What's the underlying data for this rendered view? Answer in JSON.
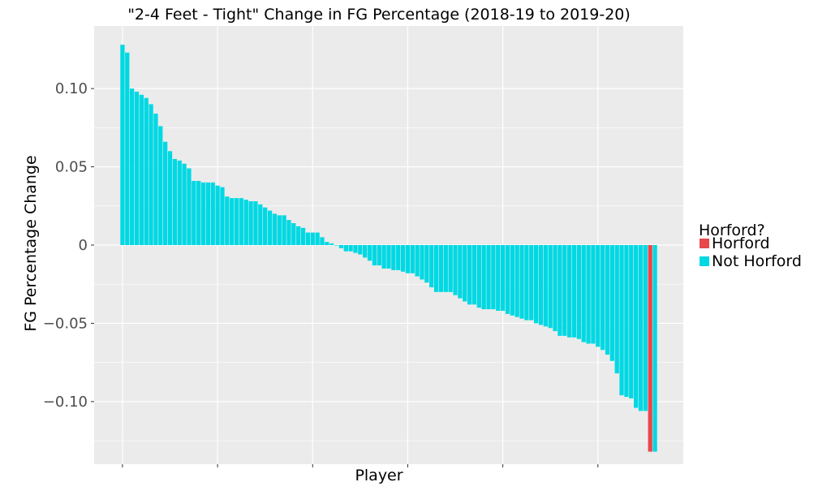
{
  "chart_data": {
    "type": "bar",
    "title": "\"2-4 Feet - Tight\" Change in FG Percentage (2018-19 to 2019-20)",
    "xlabel": "Player",
    "ylabel": "FG Percentage Change",
    "ylim": [
      -0.14,
      0.14
    ],
    "yticks": [
      {
        "value": 0.1,
        "label": "0.10"
      },
      {
        "value": 0.05,
        "label": "0.05"
      },
      {
        "value": 0,
        "label": "0"
      },
      {
        "value": -0.05,
        "label": "−0.05"
      },
      {
        "value": -0.1,
        "label": "−0.10"
      }
    ],
    "grid": true,
    "legend": {
      "title": "Horford?",
      "position": "right",
      "entries": [
        {
          "label": "Horford",
          "color": "#e8474b"
        },
        {
          "label": "Not Horford",
          "color": "#00d8e3"
        }
      ]
    },
    "colors": {
      "Horford": "#e8474b",
      "Not Horford": "#00d8e3",
      "panel": "#ebebeb",
      "grid": "#ffffff"
    },
    "values": [
      0.128,
      0.123,
      0.1,
      0.098,
      0.096,
      0.094,
      0.09,
      0.084,
      0.076,
      0.066,
      0.06,
      0.055,
      0.054,
      0.052,
      0.049,
      0.041,
      0.041,
      0.04,
      0.04,
      0.04,
      0.038,
      0.037,
      0.031,
      0.03,
      0.03,
      0.03,
      0.029,
      0.028,
      0.028,
      0.026,
      0.024,
      0.022,
      0.02,
      0.019,
      0.019,
      0.016,
      0.014,
      0.012,
      0.011,
      0.008,
      0.008,
      0.008,
      0.005,
      0.002,
      0.001,
      0,
      -0.002,
      -0.004,
      -0.004,
      -0.005,
      -0.006,
      -0.008,
      -0.01,
      -0.013,
      -0.013,
      -0.015,
      -0.015,
      -0.016,
      -0.016,
      -0.017,
      -0.018,
      -0.018,
      -0.02,
      -0.022,
      -0.024,
      -0.027,
      -0.03,
      -0.03,
      -0.03,
      -0.03,
      -0.032,
      -0.034,
      -0.036,
      -0.038,
      -0.038,
      -0.04,
      -0.041,
      -0.041,
      -0.041,
      -0.042,
      -0.042,
      -0.044,
      -0.045,
      -0.046,
      -0.047,
      -0.048,
      -0.048,
      -0.05,
      -0.051,
      -0.052,
      -0.053,
      -0.055,
      -0.058,
      -0.058,
      -0.059,
      -0.059,
      -0.06,
      -0.062,
      -0.063,
      -0.063,
      -0.065,
      -0.067,
      -0.07,
      -0.074,
      -0.082,
      -0.096,
      -0.097,
      -0.098,
      -0.104,
      -0.106,
      -0.106,
      -0.132,
      -0.132
    ],
    "groups": [
      "Not Horford",
      "Not Horford",
      "Not Horford",
      "Not Horford",
      "Not Horford",
      "Not Horford",
      "Not Horford",
      "Not Horford",
      "Not Horford",
      "Not Horford",
      "Not Horford",
      "Not Horford",
      "Not Horford",
      "Not Horford",
      "Not Horford",
      "Not Horford",
      "Not Horford",
      "Not Horford",
      "Not Horford",
      "Not Horford",
      "Not Horford",
      "Not Horford",
      "Not Horford",
      "Not Horford",
      "Not Horford",
      "Not Horford",
      "Not Horford",
      "Not Horford",
      "Not Horford",
      "Not Horford",
      "Not Horford",
      "Not Horford",
      "Not Horford",
      "Not Horford",
      "Not Horford",
      "Not Horford",
      "Not Horford",
      "Not Horford",
      "Not Horford",
      "Not Horford",
      "Not Horford",
      "Not Horford",
      "Not Horford",
      "Not Horford",
      "Not Horford",
      "Not Horford",
      "Not Horford",
      "Not Horford",
      "Not Horford",
      "Not Horford",
      "Not Horford",
      "Not Horford",
      "Not Horford",
      "Not Horford",
      "Not Horford",
      "Not Horford",
      "Not Horford",
      "Not Horford",
      "Not Horford",
      "Not Horford",
      "Not Horford",
      "Not Horford",
      "Not Horford",
      "Not Horford",
      "Not Horford",
      "Not Horford",
      "Not Horford",
      "Not Horford",
      "Not Horford",
      "Not Horford",
      "Not Horford",
      "Not Horford",
      "Not Horford",
      "Not Horford",
      "Not Horford",
      "Not Horford",
      "Not Horford",
      "Not Horford",
      "Not Horford",
      "Not Horford",
      "Not Horford",
      "Not Horford",
      "Not Horford",
      "Not Horford",
      "Not Horford",
      "Not Horford",
      "Not Horford",
      "Not Horford",
      "Not Horford",
      "Not Horford",
      "Not Horford",
      "Not Horford",
      "Not Horford",
      "Not Horford",
      "Not Horford",
      "Not Horford",
      "Not Horford",
      "Not Horford",
      "Not Horford",
      "Not Horford",
      "Not Horford",
      "Not Horford",
      "Not Horford",
      "Not Horford",
      "Not Horford",
      "Not Horford",
      "Not Horford",
      "Not Horford",
      "Not Horford",
      "Not Horford",
      "Not Horford",
      "Horford",
      "Not Horford"
    ]
  }
}
